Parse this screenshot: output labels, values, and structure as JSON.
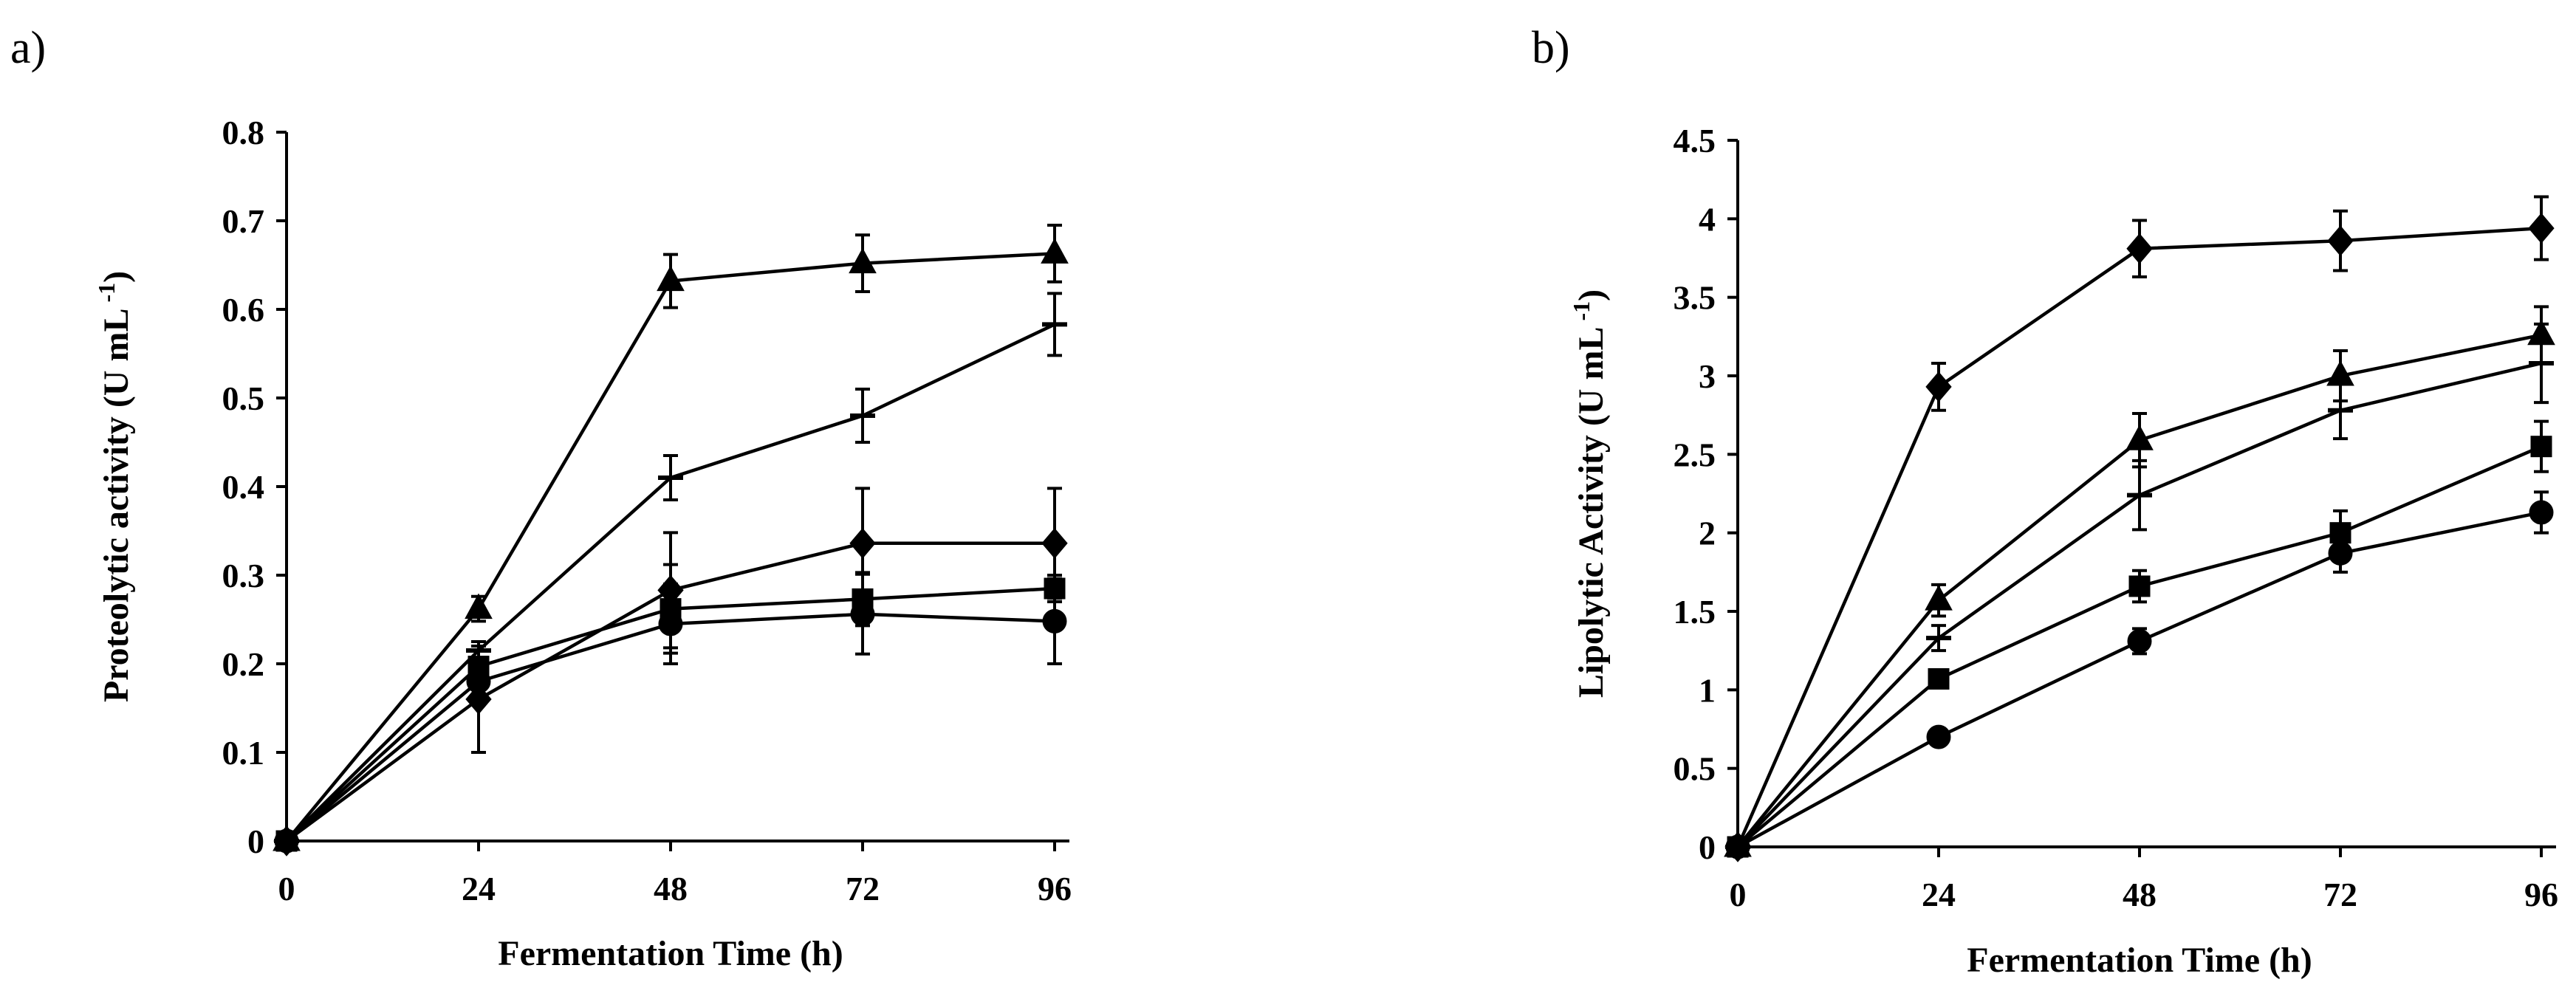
{
  "chart_data": [
    {
      "type": "line",
      "panel_label": "a)",
      "xlabel": "Fermentation Time (h)",
      "ylabel": "Proteolytic activity (U mL",
      "ylabel_sup": "-1",
      "ylabel_close": ")",
      "x": [
        0,
        24,
        48,
        72,
        96
      ],
      "xticks": [
        "0",
        "24",
        "48",
        "72",
        "96"
      ],
      "xlim": [
        0,
        96
      ],
      "ylim": [
        0,
        0.8
      ],
      "yticks": [
        "0",
        "0.1",
        "0.2",
        "0.3",
        "0.4",
        "0.5",
        "0.6",
        "0.7",
        "0.8"
      ],
      "ytick_values": [
        0,
        0.1,
        0.2,
        0.3,
        0.4,
        0.5,
        0.6,
        0.7,
        0.8
      ],
      "series": [
        {
          "name": "triangle",
          "marker": "triangle",
          "values": [
            0,
            0.262,
            0.632,
            0.652,
            0.663
          ],
          "errors": [
            0,
            0.014,
            0.03,
            0.032,
            0.032
          ]
        },
        {
          "name": "dash",
          "marker": "dash",
          "values": [
            0,
            0.215,
            0.41,
            0.48,
            0.583
          ],
          "errors": [
            0,
            0.01,
            0.025,
            0.03,
            0.035
          ]
        },
        {
          "name": "diamond",
          "marker": "diamond",
          "values": [
            0,
            0.16,
            0.283,
            0.336,
            0.336
          ],
          "errors": [
            0,
            0.06,
            0.065,
            0.062,
            0.062
          ]
        },
        {
          "name": "square",
          "marker": "square",
          "values": [
            0,
            0.197,
            0.262,
            0.273,
            0.285
          ],
          "errors": [
            0,
            0.01,
            0.05,
            0.03,
            0.015
          ]
        },
        {
          "name": "circle",
          "marker": "circle",
          "values": [
            0,
            0.18,
            0.245,
            0.256,
            0.248
          ],
          "errors": [
            0,
            0.02,
            0.045,
            0.045,
            0.048
          ]
        }
      ]
    },
    {
      "type": "line",
      "panel_label": "b)",
      "xlabel": "Fermentation Time (h)",
      "ylabel": "Lipolytic Activity (U mL",
      "ylabel_sup": "-1",
      "ylabel_close": ")",
      "x": [
        0,
        24,
        48,
        72,
        96
      ],
      "xticks": [
        "0",
        "24",
        "48",
        "72",
        "96"
      ],
      "xlim": [
        0,
        96
      ],
      "ylim": [
        0,
        4.5
      ],
      "yticks": [
        "0",
        "0.5",
        "1",
        "1.5",
        "2",
        "2.5",
        "3",
        "3.5",
        "4",
        "4.5"
      ],
      "ytick_values": [
        0,
        0.5,
        1,
        1.5,
        2,
        2.5,
        3,
        3.5,
        4,
        4.5
      ],
      "series": [
        {
          "name": "diamond",
          "marker": "diamond",
          "values": [
            0,
            2.93,
            3.81,
            3.86,
            3.94
          ],
          "errors": [
            0,
            0.15,
            0.18,
            0.19,
            0.2
          ]
        },
        {
          "name": "triangle",
          "marker": "triangle",
          "values": [
            0,
            1.57,
            2.59,
            3.0,
            3.26
          ],
          "errors": [
            0,
            0.1,
            0.17,
            0.16,
            0.18
          ]
        },
        {
          "name": "dash",
          "marker": "dash",
          "values": [
            0,
            1.33,
            2.24,
            2.78,
            3.08
          ],
          "errors": [
            0,
            0.08,
            0.22,
            0.18,
            0.25
          ]
        },
        {
          "name": "square",
          "marker": "square",
          "values": [
            0,
            1.07,
            1.66,
            2.0,
            2.55
          ],
          "errors": [
            0,
            0.05,
            0.1,
            0.14,
            0.16
          ]
        },
        {
          "name": "circle",
          "marker": "circle",
          "values": [
            0,
            0.7,
            1.31,
            1.87,
            2.13
          ],
          "errors": [
            0,
            0.03,
            0.08,
            0.12,
            0.13
          ]
        }
      ]
    }
  ]
}
